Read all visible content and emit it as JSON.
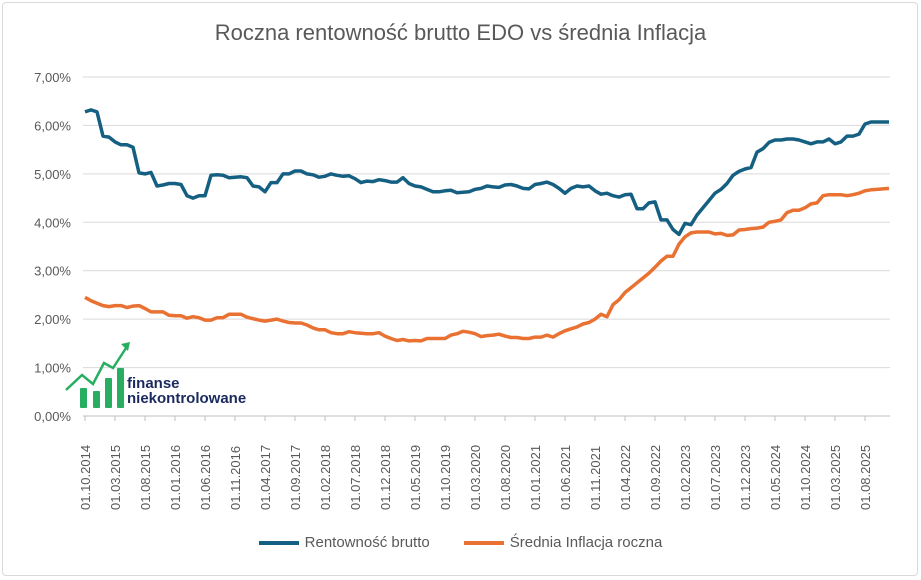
{
  "chart_data": {
    "type": "line",
    "title": "Roczna rentowność brutto EDO vs średnia Inflacja",
    "xlabel": "",
    "ylabel": "",
    "ylim": [
      0,
      7
    ],
    "y_ticks": [
      "0,00%",
      "1,00%",
      "2,00%",
      "3,00%",
      "4,00%",
      "5,00%",
      "6,00%",
      "7,00%"
    ],
    "grid": "horizontal",
    "legend": "bottom",
    "x_ticks": [
      "01.10.2014",
      "01.03.2015",
      "01.08.2015",
      "01.01.2016",
      "01.06.2016",
      "01.11.2016",
      "01.04.2017",
      "01.09.2017",
      "01.02.2018",
      "01.07.2018",
      "01.12.2018",
      "01.05.2019",
      "01.10.2019",
      "01.03.2020",
      "01.08.2020",
      "01.01.2021",
      "01.06.2021",
      "01.11.2021",
      "01.04.2022",
      "01.09.2022",
      "01.02.2023",
      "01.07.2023",
      "01.12.2023",
      "01.05.2024",
      "01.10.2024",
      "01.03.2025",
      "01.08.2025"
    ],
    "x_start": "10.2014",
    "x_step": "1 month",
    "series": [
      {
        "name": "Rentowność brutto",
        "color": "#156082",
        "values": [
          6.28,
          6.32,
          6.28,
          5.78,
          5.76,
          5.66,
          5.6,
          5.6,
          5.55,
          5.02,
          5.0,
          5.03,
          4.75,
          4.77,
          4.8,
          4.8,
          4.78,
          4.55,
          4.5,
          4.55,
          4.55,
          4.97,
          4.98,
          4.97,
          4.92,
          4.93,
          4.94,
          4.92,
          4.75,
          4.73,
          4.63,
          4.82,
          4.82,
          5.0,
          5.0,
          5.06,
          5.06,
          5.0,
          4.98,
          4.93,
          4.95,
          5.0,
          4.97,
          4.95,
          4.96,
          4.9,
          4.82,
          4.85,
          4.84,
          4.88,
          4.86,
          4.83,
          4.83,
          4.92,
          4.8,
          4.75,
          4.73,
          4.68,
          4.63,
          4.63,
          4.65,
          4.66,
          4.61,
          4.62,
          4.63,
          4.68,
          4.7,
          4.75,
          4.73,
          4.72,
          4.77,
          4.78,
          4.75,
          4.7,
          4.69,
          4.78,
          4.8,
          4.83,
          4.78,
          4.7,
          4.6,
          4.7,
          4.75,
          4.73,
          4.75,
          4.65,
          4.58,
          4.6,
          4.55,
          4.52,
          4.57,
          4.58,
          4.28,
          4.28,
          4.4,
          4.42,
          4.05,
          4.05,
          3.85,
          3.75,
          3.98,
          3.95,
          4.15,
          4.3,
          4.45,
          4.6,
          4.68,
          4.8,
          4.97,
          5.05,
          5.1,
          5.13,
          5.45,
          5.52,
          5.65,
          5.7,
          5.7,
          5.72,
          5.72,
          5.7,
          5.66,
          5.62,
          5.66,
          5.66,
          5.72,
          5.62,
          5.66,
          5.78,
          5.78,
          5.82,
          6.03,
          6.07,
          6.07,
          6.07,
          6.07
        ]
      },
      {
        "name": "Średnia Inflacja roczna",
        "color": "#E97132",
        "values": [
          2.45,
          2.38,
          2.33,
          2.28,
          2.26,
          2.28,
          2.28,
          2.24,
          2.27,
          2.28,
          2.22,
          2.15,
          2.15,
          2.15,
          2.08,
          2.07,
          2.07,
          2.02,
          2.05,
          2.03,
          1.98,
          1.98,
          2.03,
          2.03,
          2.1,
          2.1,
          2.1,
          2.04,
          2.01,
          1.98,
          1.96,
          1.98,
          2.0,
          1.96,
          1.93,
          1.92,
          1.92,
          1.88,
          1.82,
          1.78,
          1.78,
          1.72,
          1.7,
          1.7,
          1.74,
          1.72,
          1.71,
          1.7,
          1.7,
          1.72,
          1.65,
          1.6,
          1.56,
          1.58,
          1.55,
          1.56,
          1.55,
          1.6,
          1.6,
          1.6,
          1.6,
          1.67,
          1.7,
          1.75,
          1.73,
          1.7,
          1.64,
          1.66,
          1.67,
          1.69,
          1.65,
          1.62,
          1.62,
          1.6,
          1.6,
          1.63,
          1.63,
          1.67,
          1.63,
          1.7,
          1.76,
          1.8,
          1.84,
          1.9,
          1.93,
          2.0,
          2.1,
          2.05,
          2.3,
          2.4,
          2.55,
          2.65,
          2.75,
          2.85,
          2.95,
          3.07,
          3.2,
          3.3,
          3.3,
          3.55,
          3.7,
          3.78,
          3.8,
          3.8,
          3.8,
          3.76,
          3.77,
          3.73,
          3.74,
          3.84,
          3.85,
          3.87,
          3.88,
          3.9,
          4.0,
          4.02,
          4.05,
          4.2,
          4.25,
          4.25,
          4.3,
          4.38,
          4.4,
          4.55,
          4.57,
          4.57,
          4.57,
          4.55,
          4.57,
          4.6,
          4.65,
          4.67,
          4.68,
          4.69,
          4.7
        ]
      }
    ]
  },
  "logo": {
    "line1": "finanse",
    "line2": "niekontrolowane",
    "color": "#27ae60",
    "text_color": "#1b2a5e"
  }
}
